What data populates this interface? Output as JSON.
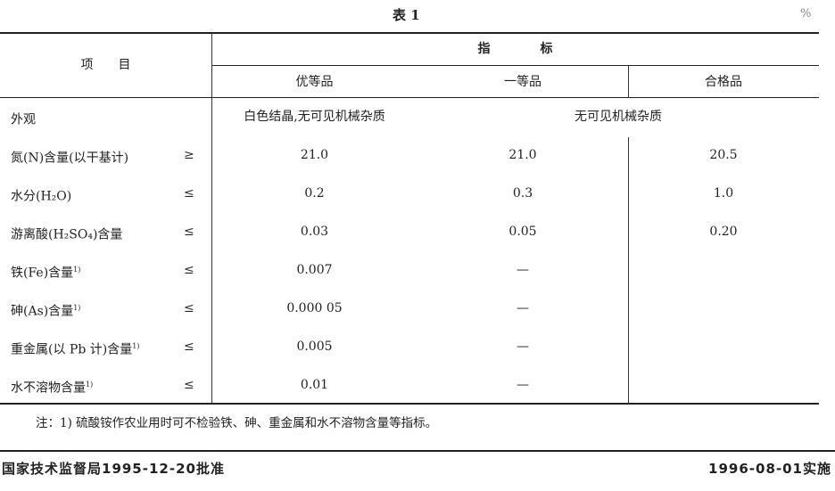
{
  "table_title": "表 1",
  "unit": "%",
  "header": {
    "item": "项　　目",
    "indicator": "指　　　　标",
    "grades": [
      "优等品",
      "一等品",
      "合格品"
    ]
  },
  "rows": [
    {
      "item": "外观",
      "note": "",
      "op": "",
      "values": [
        "白色结晶,无可见机械杂质",
        "无可见机械杂质",
        ""
      ]
    },
    {
      "item": "氮(N)含量(以干基计)",
      "note": "",
      "op": "≥",
      "values": [
        "21.0",
        "21.0",
        "20.5"
      ]
    },
    {
      "item": "水分(H₂O)",
      "note": "",
      "op": "≤",
      "values": [
        "0.2",
        "0.3",
        "1.0"
      ]
    },
    {
      "item": "游离酸(H₂SO₄)含量",
      "note": "",
      "op": "≤",
      "values": [
        "0.03",
        "0.05",
        "0.20"
      ]
    },
    {
      "item": "铁(Fe)含量",
      "note": "1)",
      "op": "≤",
      "values": [
        "0.007",
        "—",
        ""
      ]
    },
    {
      "item": "砷(As)含量",
      "note": "1)",
      "op": "≤",
      "values": [
        "0.000 05",
        "—",
        ""
      ]
    },
    {
      "item": "重金属(以 Pb 计)含量",
      "note": "1)",
      "op": "≤",
      "values": [
        "0.005",
        "—",
        ""
      ]
    },
    {
      "item": "水不溶物含量",
      "note": "1)",
      "op": "≤",
      "values": [
        "0.01",
        "—",
        ""
      ]
    }
  ],
  "footnote": "注：1) 硫酸铵作农业用时可不检验铁、砷、重金属和水不溶物含量等指标。",
  "footer": {
    "approved": "国家技术监督局1995-12-20批准",
    "effective": "1996-08-01实施"
  }
}
